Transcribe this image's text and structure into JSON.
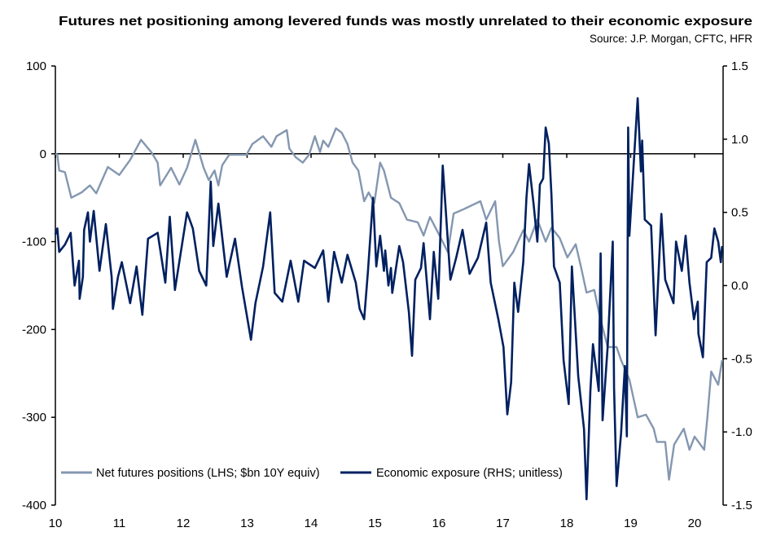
{
  "chart_data": {
    "type": "line",
    "title": "Futures net positioning among levered funds was mostly unrelated to their economic exposure",
    "subtitle": "Source: J.P. Morgan, CFTC, HFR",
    "xlabel": "",
    "ylabel": "",
    "xlim": [
      10,
      20.45
    ],
    "x_ticks": [
      "10",
      "11",
      "12",
      "13",
      "14",
      "15",
      "16",
      "17",
      "18",
      "19",
      "20"
    ],
    "y_left": {
      "lim": [
        -400,
        100
      ],
      "ticks": [
        "100",
        "0",
        "-100",
        "-200",
        "-300",
        "-400"
      ],
      "tick_values": [
        100,
        0,
        -100,
        -200,
        -300,
        -400
      ]
    },
    "y_right": {
      "lim": [
        -1.5,
        1.5
      ],
      "ticks": [
        "1.5",
        "1.0",
        "0.5",
        "0.0",
        "-0.5",
        "-1.0",
        "-1.5"
      ],
      "tick_values": [
        1.5,
        1.0,
        0.5,
        0.0,
        -0.5,
        -1.0,
        -1.5
      ]
    },
    "zero_line": true,
    "grid": false,
    "legend_position": "bottom-left",
    "series": [
      {
        "name": "Net futures positions (LHS; $bn 10Y equiv)",
        "axis": "left",
        "color": "#8497b0",
        "x": [
          10.0,
          10.03,
          10.06,
          10.15,
          10.25,
          10.41,
          10.54,
          10.64,
          10.82,
          11.0,
          11.17,
          11.34,
          11.51,
          11.6,
          11.64,
          11.81,
          11.94,
          12.06,
          12.19,
          12.32,
          12.4,
          12.49,
          12.55,
          12.61,
          12.72,
          12.99,
          13.08,
          13.25,
          13.38,
          13.46,
          13.62,
          13.66,
          13.76,
          13.87,
          13.97,
          14.06,
          14.14,
          14.19,
          14.27,
          14.39,
          14.48,
          14.57,
          14.65,
          14.74,
          14.83,
          14.9,
          14.99,
          15.08,
          15.14,
          15.25,
          15.38,
          15.5,
          15.67,
          15.76,
          15.86,
          16.01,
          16.14,
          16.23,
          16.39,
          16.65,
          16.74,
          16.88,
          16.94,
          17.0,
          17.16,
          17.32,
          17.41,
          17.54,
          17.67,
          17.76,
          17.89,
          18.01,
          18.14,
          18.22,
          18.31,
          18.43,
          18.52,
          18.64,
          18.78,
          18.85,
          18.98,
          19.11,
          19.24,
          19.36,
          19.41,
          19.54,
          19.6,
          19.68,
          19.83,
          19.92,
          20.0,
          20.15,
          20.2,
          20.26,
          20.37,
          20.43
        ],
        "y": [
          0,
          -1,
          -19,
          -21,
          -50,
          -44,
          -36,
          -45,
          -15,
          -24,
          -7,
          16,
          1,
          -10,
          -36,
          -16,
          -35,
          -16,
          16,
          -16,
          -30,
          -19,
          -36,
          -13,
          -1,
          -1,
          11,
          20,
          8,
          20,
          27,
          6,
          -4,
          -10,
          -1,
          20,
          2,
          15,
          8,
          29,
          24,
          11,
          -10,
          -19,
          -54,
          -44,
          -56,
          -10,
          -19,
          -50,
          -56,
          -75,
          -78,
          -93,
          -72,
          -93,
          -112,
          -68,
          -63,
          -54,
          -75,
          -54,
          -100,
          -128,
          -112,
          -87,
          -100,
          -75,
          -100,
          -84,
          -96,
          -118,
          -103,
          -128,
          -158,
          -155,
          -186,
          -220,
          -220,
          -235,
          -257,
          -300,
          -297,
          -313,
          -328,
          -328,
          -371,
          -331,
          -313,
          -337,
          -322,
          -337,
          -300,
          -248,
          -263,
          -235
        ]
      },
      {
        "name": "Economic exposure (RHS; unitless)",
        "axis": "right",
        "color": "#002060",
        "x": [
          10.0,
          10.03,
          10.06,
          10.15,
          10.24,
          10.3,
          10.37,
          10.38,
          10.43,
          10.45,
          10.51,
          10.54,
          10.6,
          10.69,
          10.79,
          10.88,
          10.9,
          10.98,
          11.04,
          11.17,
          11.27,
          11.36,
          11.45,
          11.6,
          11.72,
          11.79,
          11.87,
          12.06,
          12.15,
          12.25,
          12.36,
          12.43,
          12.47,
          12.55,
          12.68,
          12.81,
          12.92,
          13.06,
          13.13,
          13.25,
          13.36,
          13.43,
          13.55,
          13.68,
          13.8,
          13.89,
          14.06,
          14.19,
          14.27,
          14.36,
          14.48,
          14.57,
          14.7,
          14.76,
          14.83,
          14.89,
          14.97,
          15.02,
          15.08,
          15.14,
          15.16,
          15.21,
          15.25,
          15.27,
          15.38,
          15.44,
          15.53,
          15.58,
          15.63,
          15.72,
          15.76,
          15.86,
          15.92,
          15.99,
          16.06,
          16.11,
          16.18,
          16.27,
          16.37,
          16.48,
          16.61,
          16.74,
          16.81,
          16.93,
          17.01,
          17.07,
          17.13,
          17.18,
          17.24,
          17.32,
          17.37,
          17.41,
          17.48,
          17.54,
          17.58,
          17.63,
          17.67,
          17.72,
          17.76,
          17.8,
          17.89,
          17.95,
          18.03,
          18.08,
          18.18,
          18.27,
          18.31,
          18.37,
          18.41,
          18.5,
          18.53,
          18.56,
          18.64,
          18.72,
          18.74,
          18.78,
          18.85,
          18.91,
          18.94,
          18.96,
          18.98,
          19.03,
          19.11,
          19.16,
          19.18,
          19.22,
          19.32,
          19.39,
          19.48,
          19.54,
          19.67,
          19.71,
          19.8,
          19.86,
          19.92,
          19.99,
          20.05,
          20.06,
          20.13,
          20.19,
          20.26,
          20.31,
          20.37,
          20.41,
          20.43
        ],
        "y": [
          0.35,
          0.39,
          0.23,
          0.28,
          0.36,
          0.0,
          0.17,
          -0.09,
          0.06,
          0.38,
          0.5,
          0.3,
          0.51,
          0.1,
          0.42,
          0.06,
          -0.16,
          0.06,
          0.16,
          -0.12,
          0.13,
          -0.2,
          0.32,
          0.36,
          0.02,
          0.47,
          -0.03,
          0.5,
          0.39,
          0.1,
          0.0,
          0.71,
          0.27,
          0.56,
          0.06,
          0.32,
          -0.01,
          -0.37,
          -0.12,
          0.13,
          0.5,
          -0.05,
          -0.11,
          0.17,
          -0.11,
          0.17,
          0.12,
          0.24,
          -0.11,
          0.23,
          0.02,
          0.21,
          0.02,
          -0.16,
          -0.23,
          0.1,
          0.6,
          0.13,
          0.34,
          0.1,
          0.24,
          0.0,
          0.12,
          -0.05,
          0.27,
          0.16,
          -0.18,
          -0.48,
          0.04,
          0.12,
          0.29,
          -0.23,
          0.23,
          -0.09,
          0.82,
          0.5,
          0.04,
          0.19,
          0.38,
          0.08,
          0.19,
          0.43,
          0.02,
          -0.23,
          -0.42,
          -0.88,
          -0.66,
          0.02,
          -0.18,
          0.16,
          0.6,
          0.83,
          0.56,
          0.3,
          0.69,
          0.73,
          1.08,
          0.97,
          0.62,
          0.13,
          0.02,
          -0.51,
          -0.81,
          0.13,
          -0.62,
          -0.98,
          -1.46,
          -0.72,
          -0.4,
          -0.72,
          0.22,
          -0.92,
          -0.42,
          0.3,
          -0.7,
          -1.37,
          -1.01,
          -0.55,
          -1.03,
          1.08,
          0.34,
          0.71,
          1.28,
          0.78,
          0.99,
          0.45,
          0.41,
          -0.34,
          0.49,
          0.04,
          -0.12,
          0.3,
          0.1,
          0.34,
          0.02,
          -0.23,
          -0.11,
          -0.33,
          -0.49,
          0.16,
          0.19,
          0.39,
          0.3,
          0.16,
          0.27
        ]
      }
    ]
  }
}
